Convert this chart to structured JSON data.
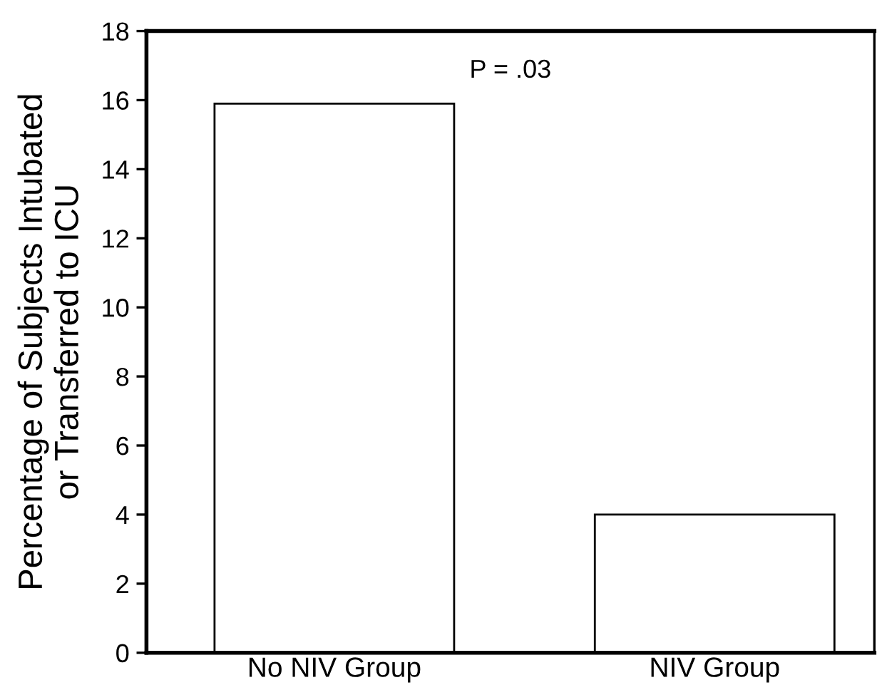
{
  "chart_data": {
    "type": "bar",
    "categories": [
      "No NIV Group",
      "NIV Group"
    ],
    "values": [
      15.9,
      4.0
    ],
    "color": "#ffffff",
    "ylabel": "Percentage of Subjects Intubated\nor Transferred to ICU",
    "ylim": [
      0,
      18
    ],
    "yticks": [
      0,
      2,
      4,
      6,
      8,
      10,
      12,
      14,
      16,
      18
    ],
    "annotations": [
      "P = .03"
    ],
    "grid": false,
    "legend": false
  }
}
